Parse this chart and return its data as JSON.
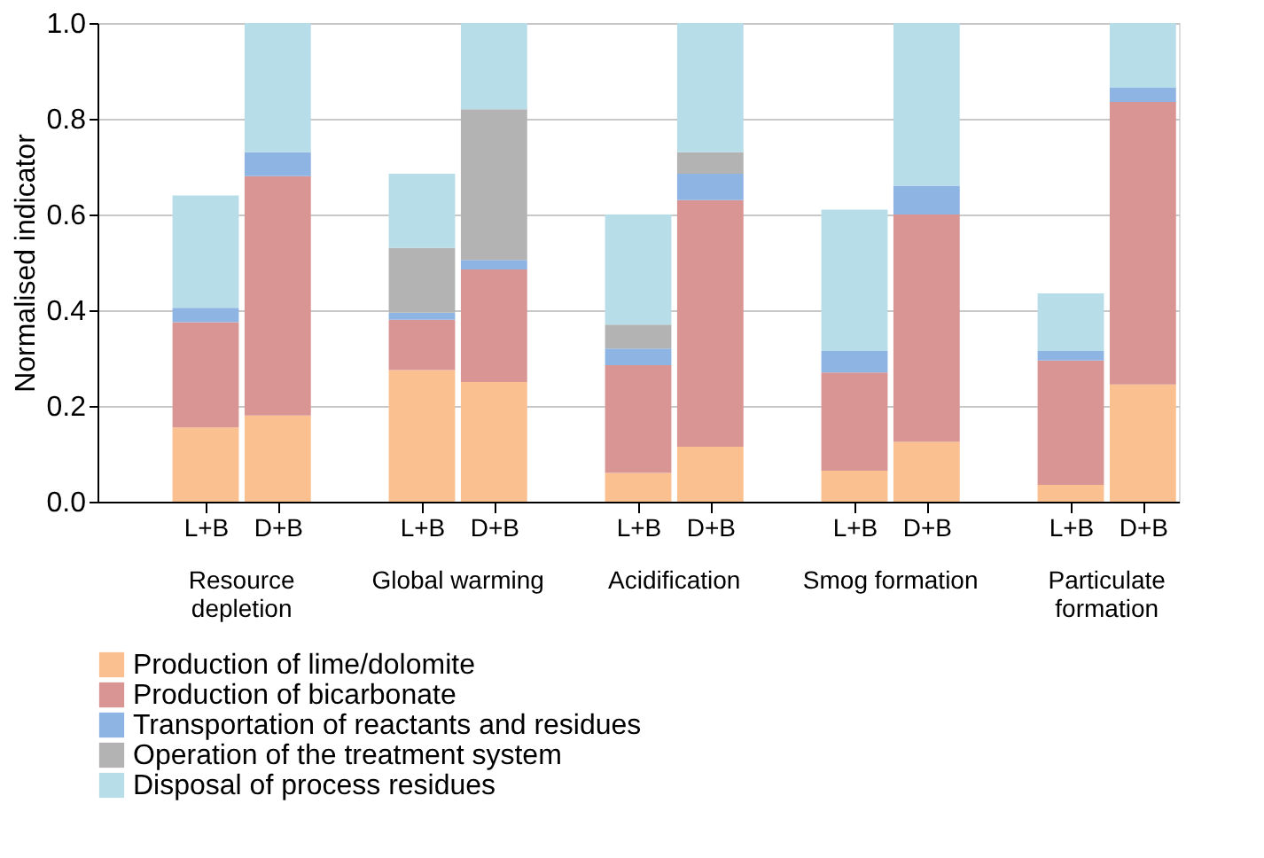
{
  "chart_data": {
    "type": "bar",
    "stacked": true,
    "ylabel": "Normalised indicator",
    "categories": [
      null,
      "L+B",
      "D+B",
      null,
      "L+B",
      "D+B",
      null,
      "L+B",
      "D+B",
      null,
      "L+B",
      "D+B",
      null,
      "L+B",
      "D+B"
    ],
    "series": [
      {
        "name": "Production of lime/dolomite",
        "color": "#fac090",
        "values": [
          null,
          0.155,
          0.18,
          null,
          0.275,
          0.25,
          null,
          0.06,
          0.115,
          null,
          0.065,
          0.125,
          null,
          0.035,
          0.245
        ]
      },
      {
        "name": "Production of bicarbonate",
        "color": "#d99594",
        "values": [
          null,
          0.22,
          0.5,
          null,
          0.105,
          0.235,
          null,
          0.225,
          0.515,
          null,
          0.205,
          0.475,
          null,
          0.26,
          0.59
        ]
      },
      {
        "name": "Transportation of reactants and residues",
        "color": "#8eb4e3",
        "values": [
          null,
          0.03,
          0.05,
          null,
          0.015,
          0.02,
          null,
          0.035,
          0.055,
          null,
          0.045,
          0.06,
          null,
          0.02,
          0.03
        ]
      },
      {
        "name": "Operation of the treatment system",
        "color": "#b3b3b3",
        "values": [
          null,
          null,
          null,
          null,
          0.135,
          0.315,
          null,
          0.05,
          0.045,
          null,
          null,
          null,
          null,
          null,
          null
        ]
      },
      {
        "name": "Disposal of process residues",
        "color": "#b7dde8",
        "values": [
          null,
          0.235,
          0.27,
          null,
          0.155,
          0.18,
          null,
          0.23,
          0.27,
          null,
          0.295,
          0.34,
          null,
          0.12,
          0.135
        ]
      }
    ],
    "ylim": [
      0,
      1
    ],
    "yticks": [
      {
        "value": 0,
        "label": "0.0"
      },
      {
        "value": 0.2,
        "label": "0.2"
      },
      {
        "value": 0.4,
        "label": "0.4"
      },
      {
        "value": 0.6,
        "label": "0.6"
      },
      {
        "value": 0.8,
        "label": "0.8"
      },
      {
        "value": 1,
        "label": "1.0"
      }
    ],
    "grid": "y",
    "legend": "bottom",
    "annotations": [
      "Resource\ndepletion",
      "Global warming",
      "Acidification",
      "Smog formation",
      "Particulate\nformation"
    ]
  }
}
